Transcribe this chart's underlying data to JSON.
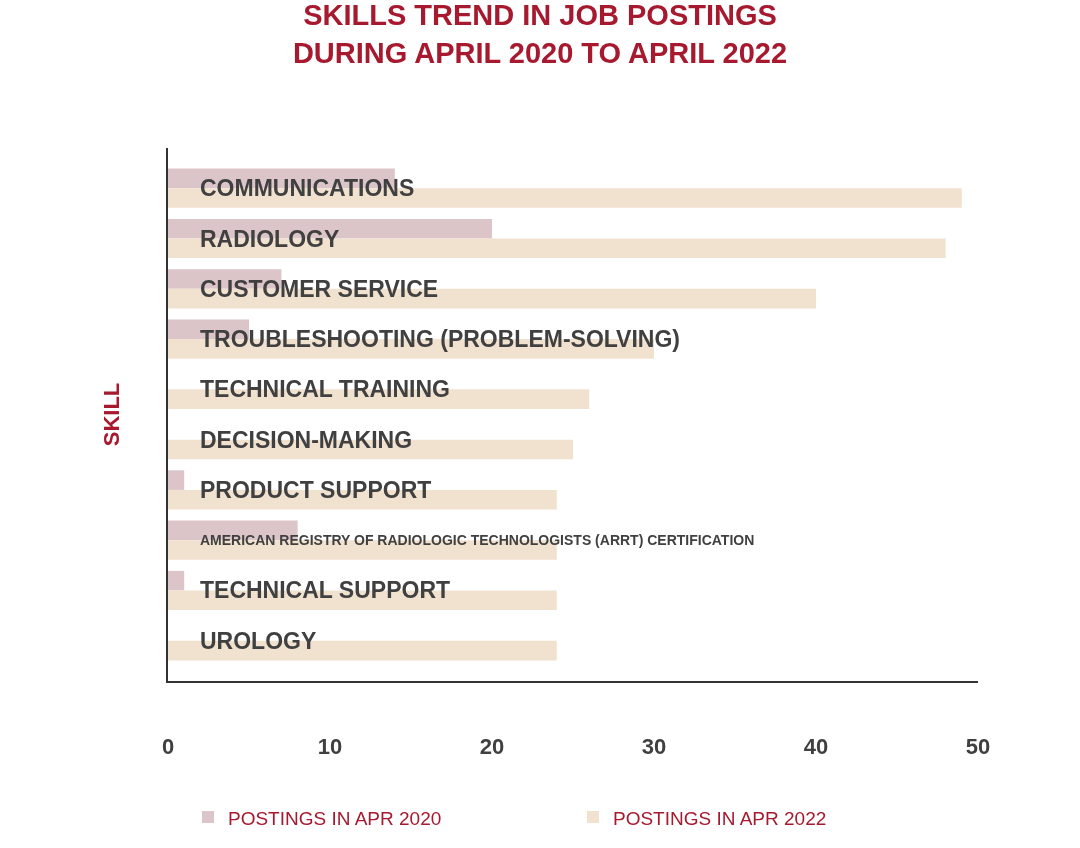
{
  "chart_data": {
    "type": "bar",
    "orientation": "horizontal",
    "title": "SKILLS TREND IN JOB POSTINGS\nDURING APRIL 2020 TO APRIL 2022",
    "ylabel": "SKILL",
    "categories": [
      "COMMUNICATIONS",
      "RADIOLOGY",
      "CUSTOMER SERVICE",
      "TROUBLESHOOTING (PROBLEM-SOLVING)",
      "TECHNICAL TRAINING",
      "DECISION-MAKING",
      "PRODUCT SUPPORT",
      "AMERICAN REGISTRY OF RADIOLOGIC TECHNOLOGISTS (ARRT) CERTIFICATION",
      "TECHNICAL SUPPORT",
      "UROLOGY"
    ],
    "series": [
      {
        "name": "POSTINGS IN APR 2020",
        "color": "#dbc5c8",
        "values": [
          14,
          20,
          7,
          5,
          0,
          0,
          1,
          8,
          1,
          0
        ]
      },
      {
        "name": "POSTINGS IN APR 2022",
        "color": "#f1e2d0",
        "values": [
          49,
          48,
          40,
          30,
          26,
          25,
          24,
          24,
          24,
          24
        ]
      }
    ],
    "xlim": [
      0,
      50
    ],
    "xticks": [
      0,
      10,
      20,
      30,
      40,
      50
    ],
    "legend": "bottom"
  }
}
